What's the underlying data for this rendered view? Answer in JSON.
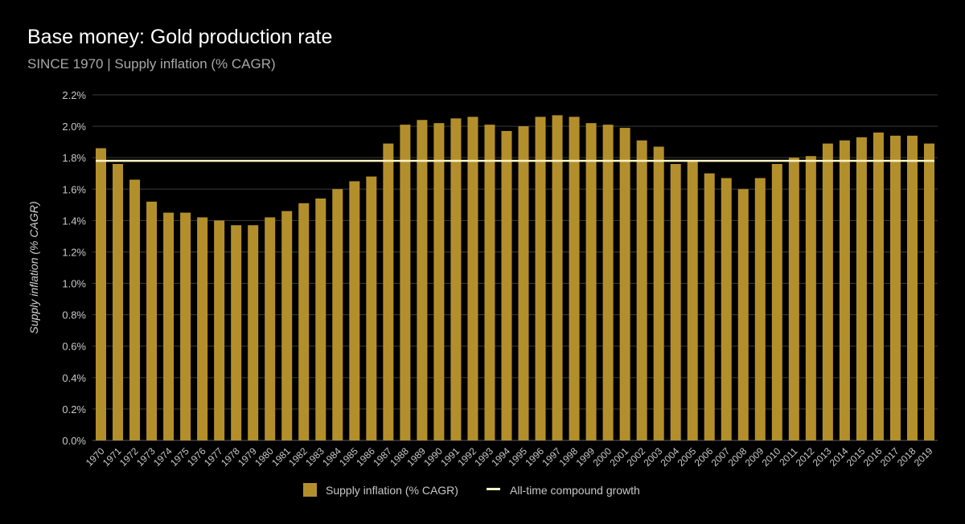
{
  "chart_data": {
    "type": "bar",
    "title": "Base money: Gold production rate",
    "subtitle": "SINCE 1970 | Supply inflation (% CAGR)",
    "ylabel": "Supply inflation (% CAGR)",
    "xlabel": "",
    "ylim": [
      0,
      2.2
    ],
    "yticks": [
      "0.0%",
      "0.2%",
      "0.4%",
      "0.6%",
      "0.8%",
      "1.0%",
      "1.2%",
      "1.4%",
      "1.6%",
      "1.8%",
      "2.0%",
      "2.2%"
    ],
    "grid": true,
    "legend_position": "bottom",
    "categories": [
      "1970",
      "1971",
      "1972",
      "1973",
      "1974",
      "1975",
      "1976",
      "1977",
      "1978",
      "1979",
      "1980",
      "1981",
      "1982",
      "1983",
      "1984",
      "1985",
      "1986",
      "1987",
      "1988",
      "1989",
      "1990",
      "1991",
      "1992",
      "1993",
      "1994",
      "1995",
      "1996",
      "1997",
      "1998",
      "1999",
      "2000",
      "2001",
      "2002",
      "2003",
      "2004",
      "2005",
      "2006",
      "2007",
      "2008",
      "2009",
      "2010",
      "2011",
      "2012",
      "2013",
      "2014",
      "2015",
      "2016",
      "2017",
      "2018",
      "2019"
    ],
    "series": [
      {
        "name": "Supply inflation (% CAGR)",
        "type": "bar",
        "color": "#b38f2c",
        "values": [
          1.86,
          1.76,
          1.66,
          1.52,
          1.45,
          1.45,
          1.42,
          1.4,
          1.37,
          1.37,
          1.42,
          1.46,
          1.51,
          1.54,
          1.6,
          1.65,
          1.68,
          1.89,
          2.01,
          2.04,
          2.02,
          2.05,
          2.06,
          2.01,
          1.97,
          2.0,
          2.06,
          2.07,
          2.06,
          2.02,
          2.01,
          1.99,
          1.91,
          1.87,
          1.76,
          1.78,
          1.7,
          1.67,
          1.6,
          1.67,
          1.76,
          1.8,
          1.81,
          1.89,
          1.91,
          1.93,
          1.96,
          1.94,
          1.94,
          1.89
        ]
      },
      {
        "name": "All-time compound growth",
        "type": "line",
        "color": "#fff3c4",
        "value": 1.78
      }
    ]
  },
  "colors": {
    "background": "#000000",
    "grid": "#3a3a3a",
    "bar": "#b38f2c",
    "line": "#fff3c4"
  }
}
